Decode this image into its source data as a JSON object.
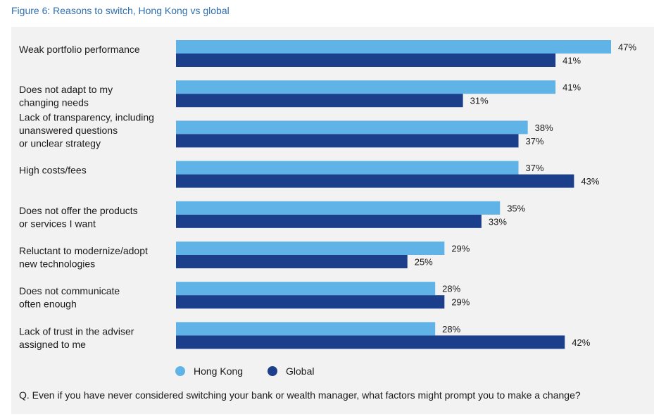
{
  "figure_title": "Figure 6: Reasons to switch, Hong Kong vs global",
  "question": "Q. Even if you have never considered switching your bank or wealth manager, what factors might prompt you to make a change?",
  "colors": {
    "hong_kong": "#5fb3e6",
    "global": "#1b3f8b",
    "panel": "#f2f2f2"
  },
  "chart_data": {
    "type": "bar",
    "orientation": "horizontal",
    "title": "Reasons to switch, Hong Kong vs global",
    "value_suffix": "%",
    "xlim": [
      0,
      47
    ],
    "grid": false,
    "legend_position": "bottom-left",
    "categories": [
      [
        "Weak portfolio performance"
      ],
      [
        "Does not adapt to my",
        "changing needs"
      ],
      [
        "Lack of transparency, including",
        "unanswered questions",
        "or unclear strategy"
      ],
      [
        "High costs/fees"
      ],
      [
        "Does not offer the products",
        "or services I want"
      ],
      [
        "Reluctant to modernize/adopt",
        "new technologies"
      ],
      [
        "Does not communicate",
        "often enough"
      ],
      [
        "Lack of trust in the adviser",
        "assigned to me"
      ]
    ],
    "series": [
      {
        "name": "Hong Kong",
        "values": [
          47,
          41,
          38,
          37,
          35,
          29,
          28,
          28
        ]
      },
      {
        "name": "Global",
        "values": [
          41,
          31,
          37,
          43,
          33,
          25,
          29,
          42
        ]
      }
    ]
  }
}
